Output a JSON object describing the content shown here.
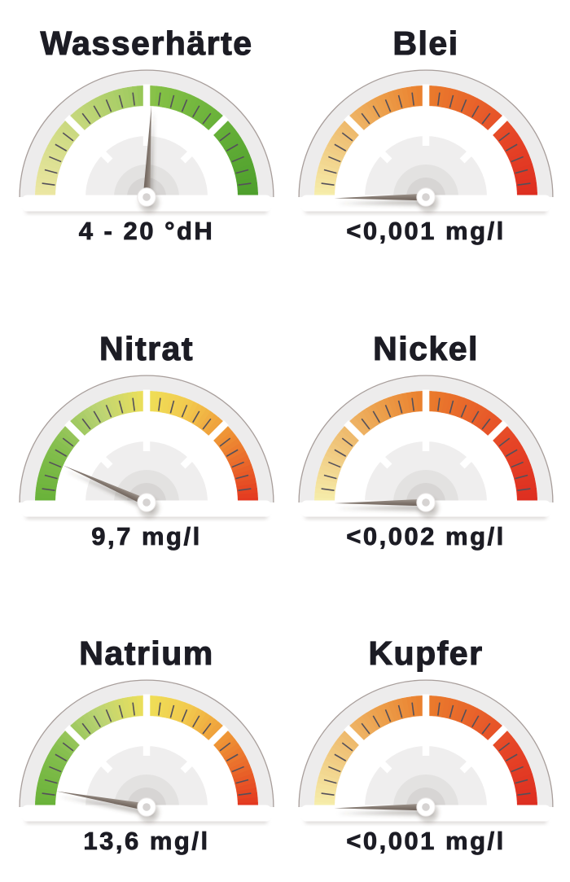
{
  "page": {
    "background": "#FFFFFF",
    "text_color": "#1C1C24",
    "language": "de"
  },
  "gauge_style": {
    "ring_color": "#EDECEC",
    "outline_color": "#A89E9B",
    "tick_color": "#54505A",
    "spoke_color": "#FFFFFF",
    "face_circle_colors": [
      "#EFEEEE",
      "#E3E2E1",
      "#D7D5D4"
    ],
    "base_strip_color": "#FFFFFF",
    "base_shadow_color": "#C4BEBC",
    "needle_dark_color": "#6B5E56",
    "needle_mid_color": "#837870",
    "needle_light_color": "#A29890",
    "hub_fill": "#FFFFFF",
    "hub_ring_color": "#E9E6E5",
    "hub_inner_color": "#D6D3D2"
  },
  "palettes": {
    "hardness": [
      [
        0,
        "#EDE7A4"
      ],
      [
        0.22,
        "#CDDA82"
      ],
      [
        0.45,
        "#A3CB62"
      ],
      [
        0.53,
        "#85C046"
      ],
      [
        0.75,
        "#67B039"
      ],
      [
        1,
        "#4D9E2C"
      ]
    ],
    "fresh": [
      [
        0,
        "#68B138"
      ],
      [
        0.18,
        "#85BE4E"
      ],
      [
        0.35,
        "#BCD474"
      ],
      [
        0.5,
        "#EFE058"
      ],
      [
        0.63,
        "#F2C94E"
      ],
      [
        0.78,
        "#EE9134"
      ],
      [
        0.9,
        "#E85E28"
      ],
      [
        1,
        "#E3351F"
      ]
    ],
    "metal": [
      [
        0,
        "#F6EFAD"
      ],
      [
        0.2,
        "#EFC176"
      ],
      [
        0.35,
        "#ECA04C"
      ],
      [
        0.5,
        "#EA7D2C"
      ],
      [
        0.63,
        "#E8672B"
      ],
      [
        0.8,
        "#E64627"
      ],
      [
        1,
        "#DD2D20"
      ]
    ]
  },
  "chart_data": [
    {
      "type": "gauge",
      "title": "Wasserhärte",
      "value_label": "4 - 20 °dH",
      "unit": "°dH",
      "palette": "hardness",
      "arc_degrees": 180,
      "needle_deg_from_vertical": 3,
      "needle_fraction_of_scale": 0.52
    },
    {
      "type": "gauge",
      "title": "Blei",
      "value_label": "<0,001 mg/l",
      "unit": "mg/l",
      "palette": "metal",
      "arc_degrees": 180,
      "needle_deg_from_vertical": -90.7,
      "needle_fraction_of_scale": 0.0
    },
    {
      "type": "gauge",
      "title": "Nitrat",
      "value_label": "9,7 mg/l",
      "unit": "mg/l",
      "palette": "fresh",
      "arc_degrees": 180,
      "needle_deg_from_vertical": -66,
      "needle_fraction_of_scale": 0.13
    },
    {
      "type": "gauge",
      "title": "Nickel",
      "value_label": "<0,002 mg/l",
      "unit": "mg/l",
      "palette": "metal",
      "arc_degrees": 180,
      "needle_deg_from_vertical": -90.5,
      "needle_fraction_of_scale": 0.0
    },
    {
      "type": "gauge",
      "title": "Natrium",
      "value_label": "13,6 mg/l",
      "unit": "mg/l",
      "palette": "fresh",
      "arc_degrees": 180,
      "needle_deg_from_vertical": -80,
      "needle_fraction_of_scale": 0.06
    },
    {
      "type": "gauge",
      "title": "Kupfer",
      "value_label": "<0,001 mg/l",
      "unit": "mg/l",
      "palette": "metal",
      "arc_degrees": 180,
      "needle_deg_from_vertical": -90.7,
      "needle_fraction_of_scale": 0.0
    }
  ]
}
